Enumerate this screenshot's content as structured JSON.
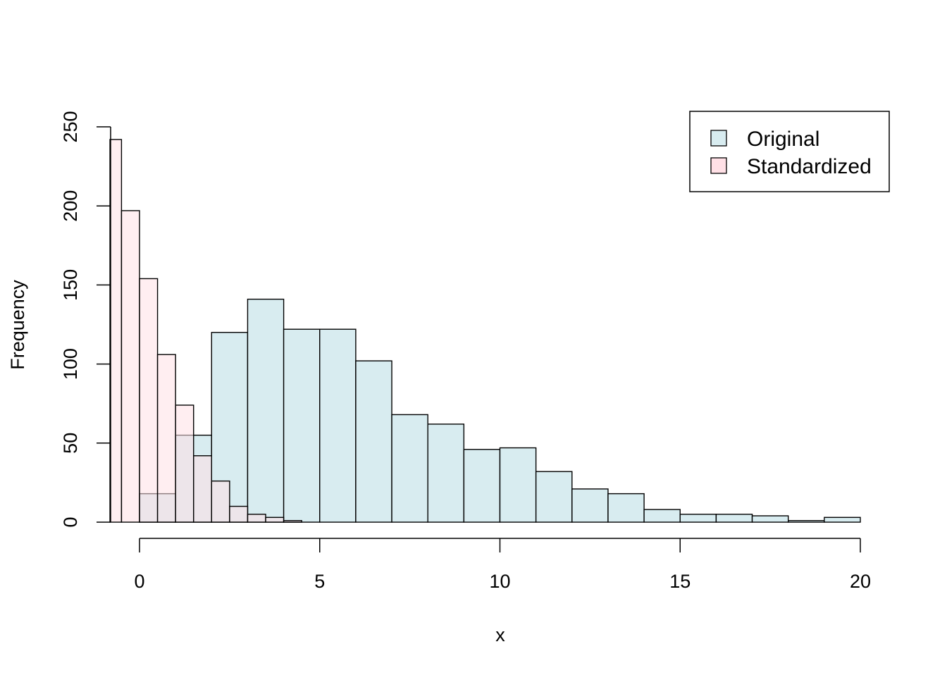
{
  "chart_data": {
    "type": "bar",
    "title": "",
    "xlabel": "x",
    "ylabel": "Frequency",
    "xlim": [
      -0.82,
      20
    ],
    "ylim": [
      0,
      250
    ],
    "xticks": [
      "0",
      "5",
      "10",
      "15",
      "20"
    ],
    "yticks": [
      "0",
      "50",
      "100",
      "150",
      "200",
      "250"
    ],
    "legend": {
      "position": "top-right",
      "entries": [
        "Original",
        "Standardized"
      ]
    },
    "series": [
      {
        "name": "Original",
        "color": "#d8ecf0",
        "bins": [
          {
            "from": 0,
            "to": 1,
            "count": 18
          },
          {
            "from": 1,
            "to": 2,
            "count": 55
          },
          {
            "from": 2,
            "to": 3,
            "count": 120
          },
          {
            "from": 3,
            "to": 4,
            "count": 141
          },
          {
            "from": 4,
            "to": 5,
            "count": 122
          },
          {
            "from": 5,
            "to": 6,
            "count": 122
          },
          {
            "from": 6,
            "to": 7,
            "count": 102
          },
          {
            "from": 7,
            "to": 8,
            "count": 68
          },
          {
            "from": 8,
            "to": 9,
            "count": 62
          },
          {
            "from": 9,
            "to": 10,
            "count": 46
          },
          {
            "from": 10,
            "to": 11,
            "count": 47
          },
          {
            "from": 11,
            "to": 12,
            "count": 32
          },
          {
            "from": 12,
            "to": 13,
            "count": 21
          },
          {
            "from": 13,
            "to": 14,
            "count": 18
          },
          {
            "from": 14,
            "to": 15,
            "count": 8
          },
          {
            "from": 15,
            "to": 16,
            "count": 5
          },
          {
            "from": 16,
            "to": 17,
            "count": 5
          },
          {
            "from": 17,
            "to": 18,
            "count": 4
          },
          {
            "from": 18,
            "to": 19,
            "count": 1
          },
          {
            "from": 19,
            "to": 20,
            "count": 3
          }
        ]
      },
      {
        "name": "Standardized",
        "color": "#ffe0e6",
        "bins": [
          {
            "from": -0.82,
            "to": -0.5,
            "count": 242
          },
          {
            "from": -0.5,
            "to": 0,
            "count": 197
          },
          {
            "from": 0,
            "to": 0.5,
            "count": 154
          },
          {
            "from": 0.5,
            "to": 1,
            "count": 106
          },
          {
            "from": 1,
            "to": 1.5,
            "count": 74
          },
          {
            "from": 1.5,
            "to": 2,
            "count": 42
          },
          {
            "from": 2,
            "to": 2.5,
            "count": 26
          },
          {
            "from": 2.5,
            "to": 3,
            "count": 10
          },
          {
            "from": 3,
            "to": 3.5,
            "count": 5
          },
          {
            "from": 3.5,
            "to": 4,
            "count": 3
          },
          {
            "from": 4,
            "to": 4.5,
            "count": 1
          }
        ]
      }
    ]
  }
}
